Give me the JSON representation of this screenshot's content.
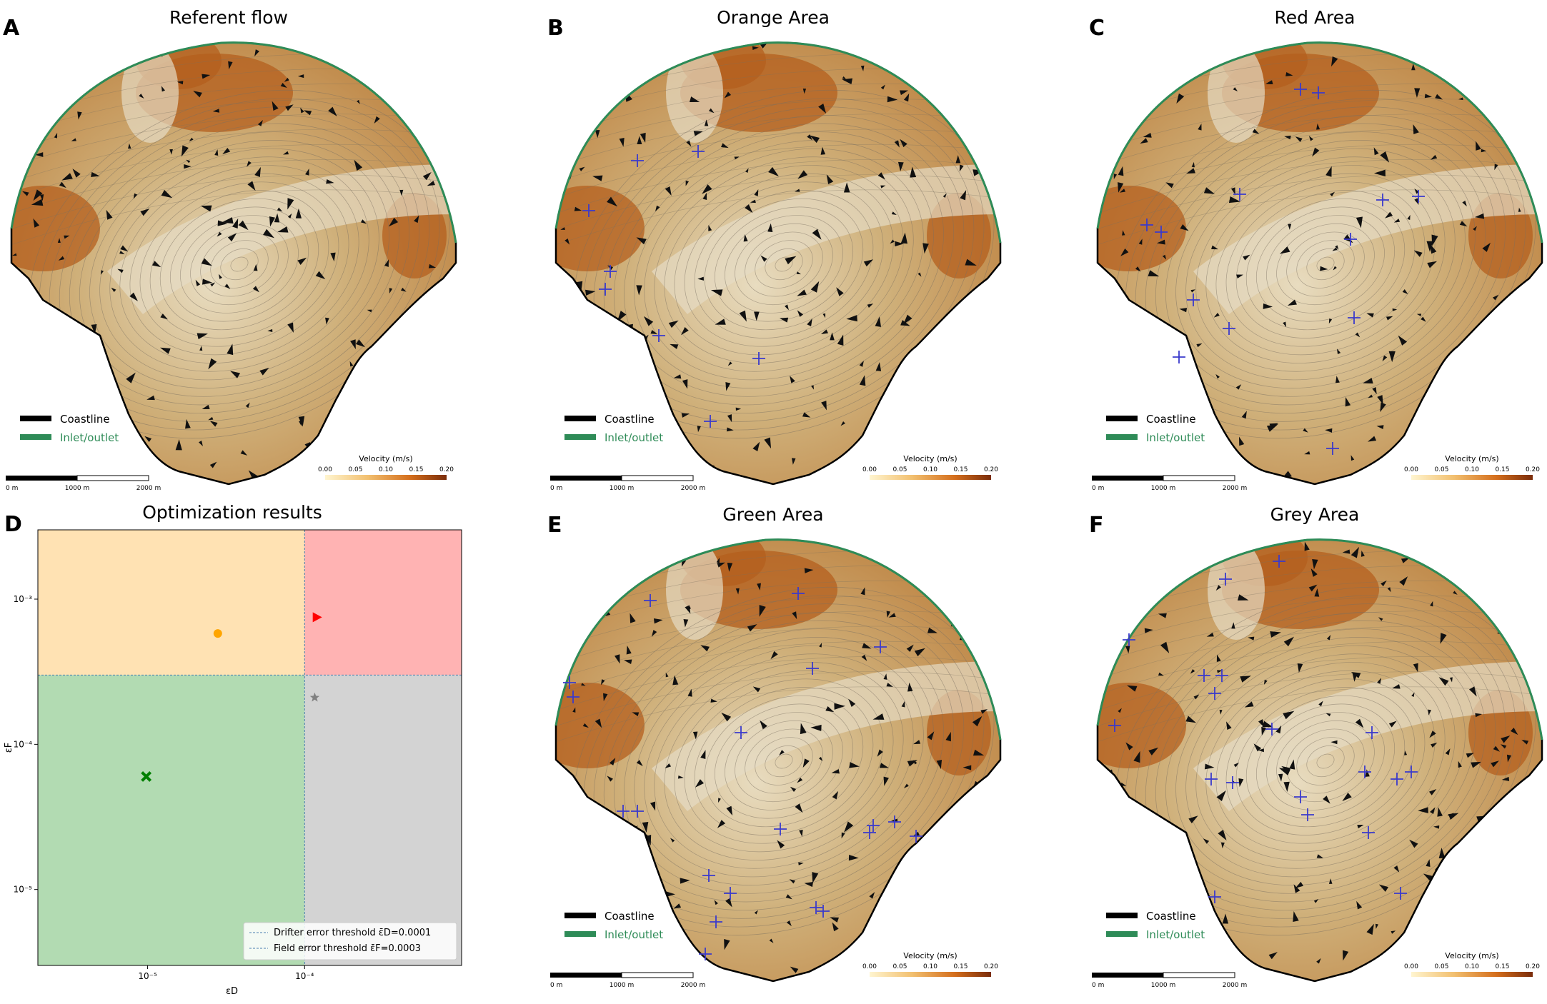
{
  "legend": {
    "coastline": "Coastline",
    "inlet": "Inlet/outlet",
    "coast_color": "#000000",
    "inlet_color": "#2e8b57"
  },
  "colorbar": {
    "title": "Velocity (m/s)",
    "ticks": [
      "0.00",
      "0.05",
      "0.10",
      "0.15",
      "0.20"
    ]
  },
  "scalebar": {
    "ticks": [
      "0 m",
      "1000 m",
      "2000 m"
    ]
  },
  "maps": [
    {
      "letter": "A",
      "title": "Referent flow"
    },
    {
      "letter": "B",
      "title": "Orange Area"
    },
    {
      "letter": "C",
      "title": "Red Area"
    },
    {
      "letter": "E",
      "title": "Green Area"
    },
    {
      "letter": "F",
      "title": "Grey Area"
    }
  ],
  "chart_data": {
    "type": "scatter",
    "letter": "D",
    "title": "Optimization results",
    "xlabel": "εD",
    "ylabel": "εF",
    "xscale": "log",
    "yscale": "log",
    "xlim": [
      2e-06,
      0.001
    ],
    "ylim": [
      3e-06,
      0.003
    ],
    "xticks": [
      {
        "value": 1e-05,
        "label": "10⁻⁵"
      },
      {
        "value": 0.0001,
        "label": "10⁻⁴"
      }
    ],
    "yticks": [
      {
        "value": 1e-05,
        "label": "10⁻⁵"
      },
      {
        "value": 0.0001,
        "label": "10⁻⁴"
      },
      {
        "value": 0.001,
        "label": "10⁻³"
      }
    ],
    "thresholds": {
      "drifter": 0.0001,
      "field": 0.0003
    },
    "regions": [
      {
        "name": "Orange",
        "color": "#ffe2b3"
      },
      {
        "name": "Red",
        "color": "#ffb3b3"
      },
      {
        "name": "Green",
        "color": "#b2dbb2"
      },
      {
        "name": "Grey",
        "color": "#d3d3d3"
      }
    ],
    "points": [
      {
        "name": "Orange",
        "x": 2.8e-05,
        "y": 0.00058,
        "marker": "circle",
        "color": "#ffa500"
      },
      {
        "name": "Red",
        "x": 0.00012,
        "y": 0.00075,
        "marker": "triangle-right",
        "color": "#ff0000"
      },
      {
        "name": "Green",
        "x": 9.8e-06,
        "y": 6e-05,
        "marker": "x",
        "color": "#008000"
      },
      {
        "name": "Grey",
        "x": 0.000116,
        "y": 0.00021,
        "marker": "star",
        "color": "#808080"
      }
    ],
    "legend": [
      {
        "label": "Drifter error threshold ε̄D=0.0001"
      },
      {
        "label": "Field error threshold ε̄F=0.0003"
      }
    ]
  }
}
